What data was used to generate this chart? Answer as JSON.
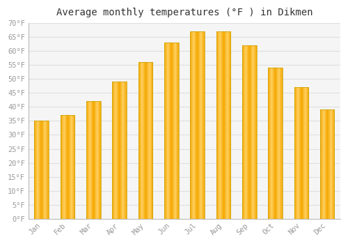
{
  "title": "Average monthly temperatures (°F ) in Dikmen",
  "months": [
    "Jan",
    "Feb",
    "Mar",
    "Apr",
    "May",
    "Jun",
    "Jul",
    "Aug",
    "Sep",
    "Oct",
    "Nov",
    "Dec"
  ],
  "values": [
    35,
    37,
    42,
    49,
    56,
    63,
    67,
    67,
    62,
    54,
    47,
    39
  ],
  "bar_color_center": "#FFD060",
  "bar_color_edge": "#F5A800",
  "bar_edge_color": "#C8A000",
  "ylim": [
    0,
    70
  ],
  "yticks": [
    0,
    5,
    10,
    15,
    20,
    25,
    30,
    35,
    40,
    45,
    50,
    55,
    60,
    65,
    70
  ],
  "ytick_labels": [
    "0°F",
    "5°F",
    "10°F",
    "15°F",
    "20°F",
    "25°F",
    "30°F",
    "35°F",
    "40°F",
    "45°F",
    "50°F",
    "55°F",
    "60°F",
    "65°F",
    "70°F"
  ],
  "background_color": "#ffffff",
  "plot_bg_color": "#f5f5f5",
  "grid_color": "#e0e0e0",
  "title_fontsize": 10,
  "tick_fontsize": 7.5,
  "bar_width": 0.55,
  "font_family": "monospace"
}
